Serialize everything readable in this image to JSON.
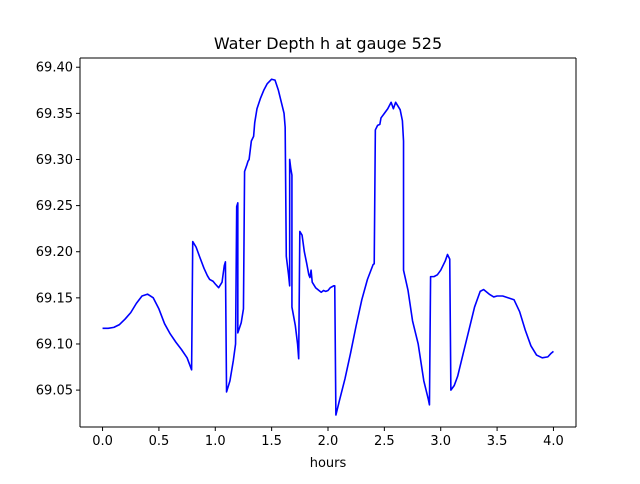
{
  "chart_data": {
    "type": "line",
    "title": "Water Depth h at gauge 525",
    "xlabel": "hours",
    "ylabel": "",
    "xlim": [
      -0.2,
      4.2
    ],
    "ylim": [
      69.01,
      69.41
    ],
    "x_ticks": [
      0.0,
      0.5,
      1.0,
      1.5,
      2.0,
      2.5,
      3.0,
      3.5,
      4.0
    ],
    "x_tick_labels": [
      "0.0",
      "0.5",
      "1.0",
      "1.5",
      "2.0",
      "2.5",
      "3.0",
      "3.5",
      "4.0"
    ],
    "y_ticks": [
      69.05,
      69.1,
      69.15,
      69.2,
      69.25,
      69.3,
      69.35,
      69.4
    ],
    "y_tick_labels": [
      "69.05",
      "69.10",
      "69.15",
      "69.20",
      "69.25",
      "69.30",
      "69.35",
      "69.40"
    ],
    "grid": false,
    "series": [
      {
        "color": "#0000ff",
        "points": [
          [
            0.0,
            69.117
          ],
          [
            0.05,
            69.117
          ],
          [
            0.1,
            69.118
          ],
          [
            0.15,
            69.121
          ],
          [
            0.2,
            69.127
          ],
          [
            0.25,
            69.134
          ],
          [
            0.3,
            69.144
          ],
          [
            0.35,
            69.152
          ],
          [
            0.4,
            69.154
          ],
          [
            0.45,
            69.15
          ],
          [
            0.5,
            69.138
          ],
          [
            0.55,
            69.122
          ],
          [
            0.6,
            69.111
          ],
          [
            0.65,
            69.102
          ],
          [
            0.7,
            69.094
          ],
          [
            0.75,
            69.085
          ],
          [
            0.79,
            69.072
          ],
          [
            0.8,
            69.211
          ],
          [
            0.83,
            69.205
          ],
          [
            0.86,
            69.195
          ],
          [
            0.9,
            69.182
          ],
          [
            0.93,
            69.174
          ],
          [
            0.95,
            69.17
          ],
          [
            0.98,
            69.168
          ],
          [
            1.0,
            69.165
          ],
          [
            1.03,
            69.161
          ],
          [
            1.06,
            69.167
          ],
          [
            1.08,
            69.185
          ],
          [
            1.09,
            69.189
          ],
          [
            1.1,
            69.048
          ],
          [
            1.13,
            69.06
          ],
          [
            1.16,
            69.082
          ],
          [
            1.18,
            69.1
          ],
          [
            1.19,
            69.249
          ],
          [
            1.2,
            69.253
          ],
          [
            1.2,
            69.112
          ],
          [
            1.23,
            69.123
          ],
          [
            1.25,
            69.138
          ],
          [
            1.26,
            69.287
          ],
          [
            1.28,
            69.294
          ],
          [
            1.29,
            69.298
          ],
          [
            1.3,
            69.3
          ],
          [
            1.32,
            69.32
          ],
          [
            1.34,
            69.325
          ],
          [
            1.35,
            69.34
          ],
          [
            1.37,
            69.355
          ],
          [
            1.4,
            69.366
          ],
          [
            1.43,
            69.375
          ],
          [
            1.46,
            69.382
          ],
          [
            1.5,
            69.387
          ],
          [
            1.53,
            69.386
          ],
          [
            1.56,
            69.375
          ],
          [
            1.59,
            69.36
          ],
          [
            1.61,
            69.35
          ],
          [
            1.62,
            69.335
          ],
          [
            1.63,
            69.195
          ],
          [
            1.65,
            69.175
          ],
          [
            1.66,
            69.163
          ],
          [
            1.66,
            69.3
          ],
          [
            1.67,
            69.29
          ],
          [
            1.68,
            69.283
          ],
          [
            1.68,
            69.14
          ],
          [
            1.71,
            69.12
          ],
          [
            1.73,
            69.1
          ],
          [
            1.74,
            69.084
          ],
          [
            1.75,
            69.222
          ],
          [
            1.77,
            69.218
          ],
          [
            1.79,
            69.2
          ],
          [
            1.81,
            69.188
          ],
          [
            1.83,
            69.175
          ],
          [
            1.84,
            69.172
          ],
          [
            1.85,
            69.18
          ],
          [
            1.86,
            69.167
          ],
          [
            1.89,
            69.161
          ],
          [
            1.92,
            69.158
          ],
          [
            1.94,
            69.156
          ],
          [
            1.96,
            69.158
          ],
          [
            1.98,
            69.157
          ],
          [
            2.0,
            69.158
          ],
          [
            2.02,
            69.161
          ],
          [
            2.05,
            69.163
          ],
          [
            2.06,
            69.163
          ],
          [
            2.07,
            69.023
          ],
          [
            2.1,
            69.038
          ],
          [
            2.15,
            69.062
          ],
          [
            2.2,
            69.09
          ],
          [
            2.25,
            69.12
          ],
          [
            2.3,
            69.148
          ],
          [
            2.35,
            69.17
          ],
          [
            2.4,
            69.186
          ],
          [
            2.41,
            69.187
          ],
          [
            2.42,
            69.332
          ],
          [
            2.44,
            69.337
          ],
          [
            2.46,
            69.338
          ],
          [
            2.47,
            69.345
          ],
          [
            2.5,
            69.35
          ],
          [
            2.53,
            69.355
          ],
          [
            2.56,
            69.362
          ],
          [
            2.58,
            69.355
          ],
          [
            2.6,
            69.362
          ],
          [
            2.62,
            69.358
          ],
          [
            2.64,
            69.354
          ],
          [
            2.66,
            69.342
          ],
          [
            2.67,
            69.32
          ],
          [
            2.67,
            69.18
          ],
          [
            2.71,
            69.158
          ],
          [
            2.75,
            69.125
          ],
          [
            2.8,
            69.1
          ],
          [
            2.85,
            69.06
          ],
          [
            2.89,
            69.04
          ],
          [
            2.9,
            69.034
          ],
          [
            2.91,
            69.173
          ],
          [
            2.94,
            69.173
          ],
          [
            2.97,
            69.175
          ],
          [
            3.0,
            69.18
          ],
          [
            3.04,
            69.19
          ],
          [
            3.06,
            69.197
          ],
          [
            3.08,
            69.192
          ],
          [
            3.09,
            69.05
          ],
          [
            3.12,
            69.055
          ],
          [
            3.15,
            69.065
          ],
          [
            3.2,
            69.09
          ],
          [
            3.25,
            69.115
          ],
          [
            3.3,
            69.14
          ],
          [
            3.35,
            69.157
          ],
          [
            3.38,
            69.159
          ],
          [
            3.43,
            69.154
          ],
          [
            3.47,
            69.151
          ],
          [
            3.5,
            69.152
          ],
          [
            3.55,
            69.152
          ],
          [
            3.6,
            69.15
          ],
          [
            3.65,
            69.148
          ],
          [
            3.7,
            69.135
          ],
          [
            3.75,
            69.115
          ],
          [
            3.8,
            69.098
          ],
          [
            3.85,
            69.088
          ],
          [
            3.9,
            69.085
          ],
          [
            3.95,
            69.086
          ],
          [
            3.98,
            69.09
          ],
          [
            4.0,
            69.092
          ]
        ]
      }
    ]
  }
}
